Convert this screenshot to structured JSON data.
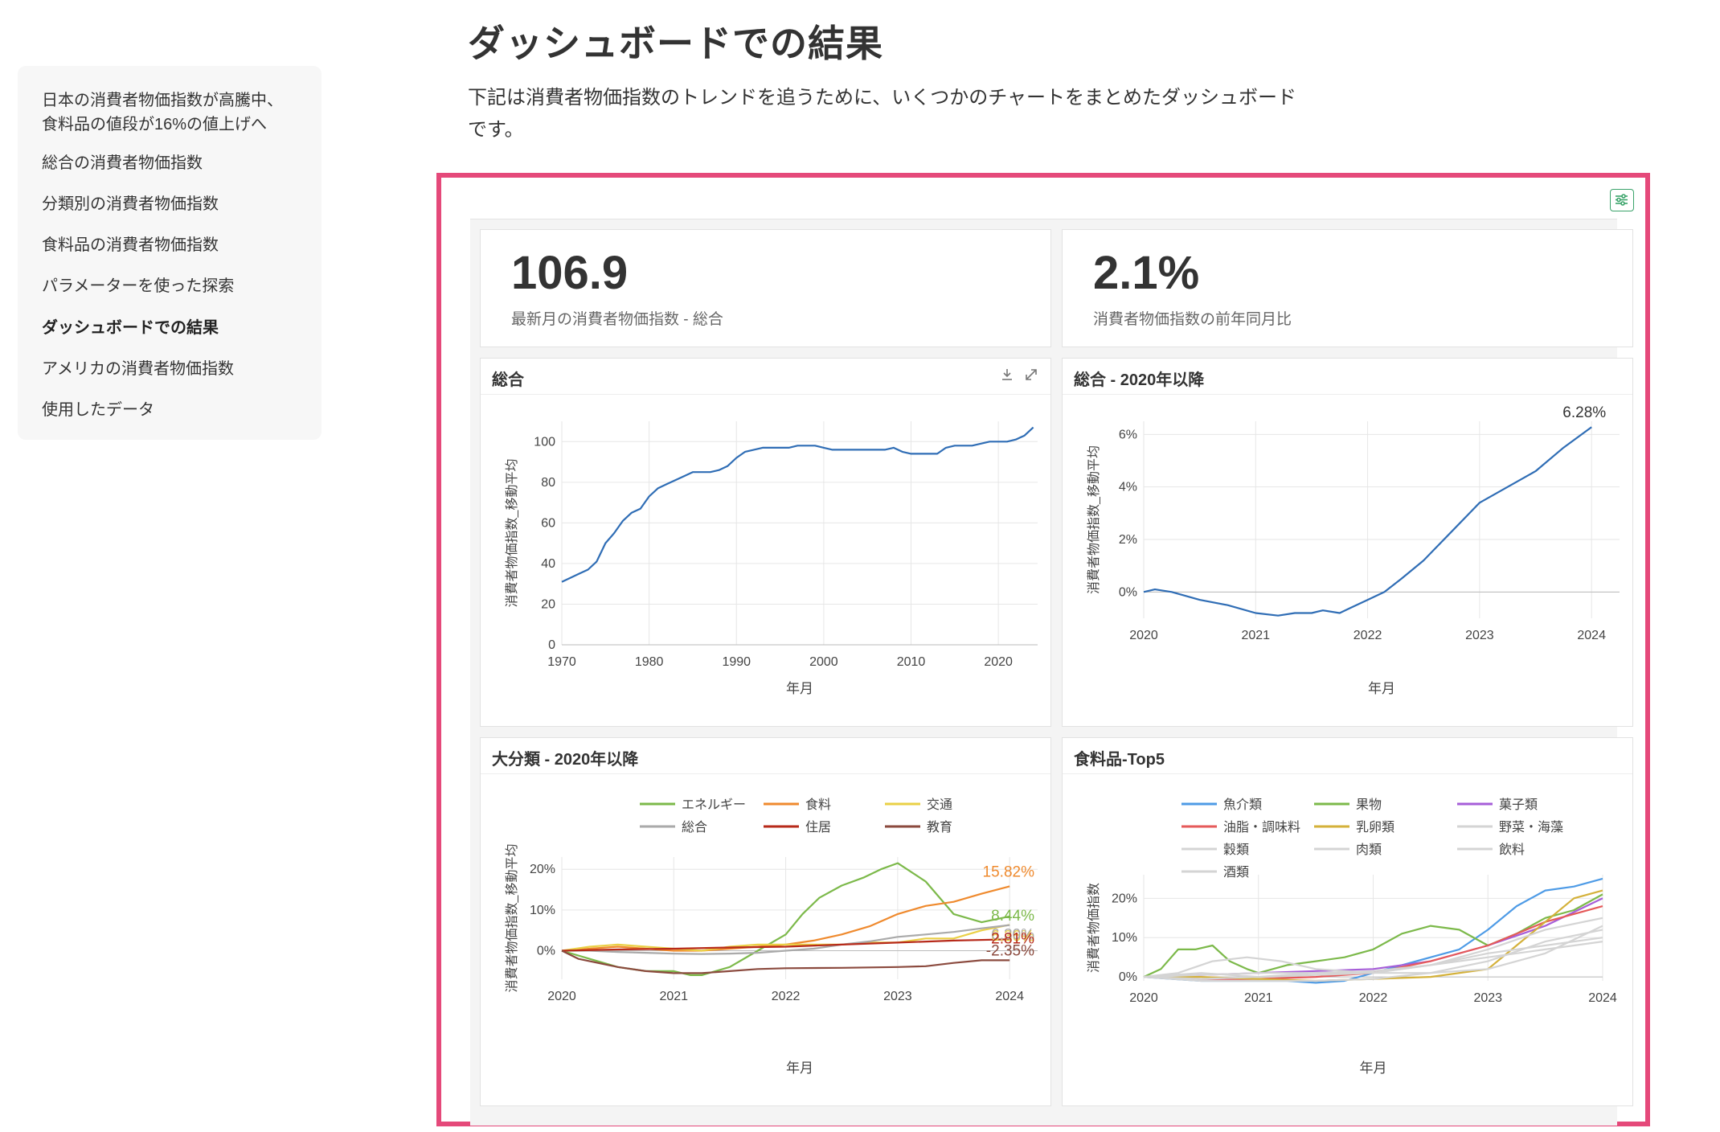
{
  "sidebar": {
    "items": [
      {
        "label_line1": "日本の消費者物価指数が高騰中、",
        "label_line2": "食料品の値段が16%の値上げへ"
      },
      {
        "label": "総合の消費者物価指数"
      },
      {
        "label": "分類別の消費者物価指数"
      },
      {
        "label": "食料品の消費者物価指数"
      },
      {
        "label": "パラメーターを使った探索"
      },
      {
        "label": "ダッシュボードでの結果"
      },
      {
        "label": "アメリカの消費者物価指数"
      },
      {
        "label": "使用したデータ"
      }
    ]
  },
  "header": {
    "title": "ダッシュボードでの結果",
    "description": "下記は消費者物価指数のトレンドを追うために、いくつかのチャートをまとめたダッシュボードです。"
  },
  "kpis": [
    {
      "value": "106.9",
      "caption": "最新月の消費者物価指数 - 総合"
    },
    {
      "value": "2.1%",
      "caption": "消費者物価指数の前年同月比"
    }
  ],
  "colors": {
    "accent": "#e5497a",
    "filter": "#3aa36a",
    "line_blue": "#2f6db5"
  },
  "icons": {
    "filter": "sliders-icon",
    "download": "download-icon",
    "expand": "expand-icon"
  },
  "chart_data": [
    {
      "type": "line",
      "title": "総合",
      "xlabel": "年月",
      "ylabel": "消費者物価指数_移動平均",
      "xlim": [
        1970,
        2024.5
      ],
      "ylim": [
        0,
        110
      ],
      "xticks": [
        1970,
        1980,
        1990,
        2000,
        2010,
        2020
      ],
      "yticks": [
        0,
        20,
        40,
        60,
        80,
        100
      ],
      "grid": "vertical",
      "series": [
        {
          "color": "#2f6db5",
          "x": [
            1970,
            1971,
            1972,
            1973,
            1974,
            1975,
            1976,
            1977,
            1978,
            1979,
            1980,
            1981,
            1982,
            1983,
            1984,
            1985,
            1986,
            1987,
            1988,
            1989,
            1990,
            1991,
            1992,
            1993,
            1994,
            1995,
            1996,
            1997,
            1998,
            1999,
            2000,
            2001,
            2002,
            2003,
            2004,
            2005,
            2006,
            2007,
            2008,
            2009,
            2010,
            2011,
            2012,
            2013,
            2014,
            2015,
            2016,
            2017,
            2018,
            2019,
            2020,
            2021,
            2022,
            2023,
            2024
          ],
          "y": [
            31,
            33,
            35,
            37,
            41,
            50,
            55,
            61,
            65,
            67,
            73,
            77,
            79,
            81,
            83,
            85,
            85,
            85,
            86,
            88,
            92,
            95,
            96,
            97,
            97,
            97,
            97,
            98,
            98,
            98,
            97,
            96,
            96,
            96,
            96,
            96,
            96,
            96,
            97,
            95,
            94,
            94,
            94,
            94,
            97,
            98,
            98,
            98,
            99,
            100,
            100,
            100,
            101,
            103,
            107
          ]
        }
      ]
    },
    {
      "type": "line",
      "title": "総合 - 2020年以降",
      "xlabel": "年月",
      "ylabel": "消費者物価指数_移動平均",
      "xlim": [
        2020,
        2024.25
      ],
      "ylim": [
        -1,
        6.5
      ],
      "xticks": [
        2020,
        2021,
        2022,
        2023,
        2024
      ],
      "yticks": [
        0,
        2,
        4,
        6
      ],
      "ytick_labels": [
        "0%",
        "2%",
        "4%",
        "6%"
      ],
      "annotation": "6.28%",
      "series": [
        {
          "color": "#2f6db5",
          "x": [
            2020,
            2020.1,
            2020.25,
            2020.5,
            2020.75,
            2021,
            2021.2,
            2021.35,
            2021.5,
            2021.6,
            2021.75,
            2021.85,
            2022,
            2022.15,
            2022.3,
            2022.5,
            2022.75,
            2023,
            2023.25,
            2023.5,
            2023.75,
            2024
          ],
          "y": [
            0.0,
            0.1,
            0.0,
            -0.3,
            -0.5,
            -0.8,
            -0.9,
            -0.8,
            -0.8,
            -0.7,
            -0.8,
            -0.6,
            -0.3,
            0.0,
            0.5,
            1.2,
            2.3,
            3.4,
            4.0,
            4.6,
            5.5,
            6.28
          ]
        }
      ]
    },
    {
      "type": "line",
      "title": "大分類 - 2020年以降",
      "xlabel": "年月",
      "ylabel": "消費者物価指数_移動平均",
      "xlim": [
        2020,
        2024.25
      ],
      "ylim": [
        -7,
        23
      ],
      "xticks": [
        2020,
        2021,
        2022,
        2023,
        2024
      ],
      "yticks": [
        0,
        10,
        20
      ],
      "ytick_labels": [
        "0%",
        "10%",
        "20%"
      ],
      "legend": "top",
      "series": [
        {
          "name": "エネルギー",
          "color": "#7cb94a",
          "end_label": "8.44%",
          "x": [
            2020,
            2020.25,
            2020.5,
            2020.75,
            2021,
            2021.15,
            2021.25,
            2021.5,
            2021.75,
            2022,
            2022.15,
            2022.3,
            2022.5,
            2022.7,
            2022.85,
            2023,
            2023.25,
            2023.5,
            2023.75,
            2024
          ],
          "y": [
            0,
            -2,
            -4,
            -5,
            -5,
            -6,
            -6,
            -4,
            0,
            4,
            9,
            13,
            16,
            18,
            20,
            21.5,
            17,
            9,
            7,
            8.44
          ]
        },
        {
          "name": "食料",
          "color": "#ef8a2e",
          "end_label": "15.82%",
          "x": [
            2020,
            2020.25,
            2020.5,
            2020.75,
            2021,
            2021.25,
            2021.5,
            2021.75,
            2022,
            2022.25,
            2022.5,
            2022.75,
            2023,
            2023.25,
            2023.5,
            2023.75,
            2024
          ],
          "y": [
            0,
            0.5,
            1,
            0.5,
            0,
            0,
            0.5,
            1,
            1.5,
            2.5,
            4,
            6,
            9,
            11,
            12,
            14,
            15.82
          ]
        },
        {
          "name": "交通",
          "color": "#ead046",
          "end_label": "6.36%",
          "x": [
            2020,
            2020.25,
            2020.5,
            2020.75,
            2021,
            2021.25,
            2021.5,
            2021.75,
            2022,
            2022.25,
            2022.5,
            2022.75,
            2023,
            2023.25,
            2023.5,
            2023.75,
            2024
          ],
          "y": [
            0,
            1,
            1.5,
            1,
            0.5,
            0,
            1,
            1.5,
            1.5,
            1.5,
            1.5,
            2,
            2,
            3,
            3,
            5,
            6.36
          ]
        },
        {
          "name": "総合",
          "color": "#aaaaaa",
          "end_label": "6.30%",
          "x": [
            2020,
            2020.25,
            2020.5,
            2020.75,
            2021,
            2021.25,
            2021.5,
            2021.75,
            2022,
            2022.25,
            2022.5,
            2022.75,
            2023,
            2023.25,
            2023.5,
            2023.75,
            2024
          ],
          "y": [
            0,
            0,
            -0.3,
            -0.5,
            -0.7,
            -0.8,
            -0.7,
            -0.5,
            0,
            0.5,
            1.5,
            2.3,
            3.4,
            4.0,
            4.6,
            5.5,
            6.3
          ]
        },
        {
          "name": "住居",
          "color": "#b72a1a",
          "end_label": "2.81%",
          "x": [
            2020,
            2020.5,
            2021,
            2021.5,
            2022,
            2022.5,
            2023,
            2023.5,
            2024
          ],
          "y": [
            0,
            0.3,
            0.5,
            0.8,
            1,
            1.5,
            2,
            2.5,
            2.81
          ]
        },
        {
          "name": "教育",
          "color": "#8b4a3e",
          "end_label": "-2.35%",
          "x": [
            2020,
            2020.15,
            2020.5,
            2020.75,
            2021,
            2021.25,
            2021.5,
            2021.75,
            2022,
            2022.5,
            2023,
            2023.25,
            2023.5,
            2023.75,
            2024
          ],
          "y": [
            0,
            -2,
            -4,
            -5,
            -5.5,
            -5.5,
            -5,
            -4.5,
            -4.3,
            -4.2,
            -4,
            -3.8,
            -3,
            -2.35,
            -2.35
          ]
        }
      ]
    },
    {
      "type": "line",
      "title": "食料品-Top5",
      "xlabel": "年月",
      "ylabel": "消費者物価指数",
      "xlim": [
        2020,
        2024
      ],
      "ylim": [
        -1,
        26
      ],
      "xticks": [
        2020,
        2021,
        2022,
        2023,
        2024
      ],
      "yticks": [
        0,
        10,
        20
      ],
      "ytick_labels": [
        "0%",
        "10%",
        "20%"
      ],
      "legend": "top",
      "series": [
        {
          "name": "魚介類",
          "color": "#4e9be6",
          "x": [
            2020,
            2020.25,
            2020.5,
            2020.75,
            2021,
            2021.25,
            2021.5,
            2021.75,
            2022,
            2022.25,
            2022.5,
            2022.75,
            2023,
            2023.25,
            2023.5,
            2023.75,
            2024
          ],
          "y": [
            0,
            -0.5,
            -1,
            -1,
            -1,
            -1,
            -1.5,
            -1,
            1,
            3,
            5,
            7,
            12,
            18,
            22,
            23,
            25
          ]
        },
        {
          "name": "果物",
          "color": "#7cb94a",
          "x": [
            2020,
            2020.15,
            2020.3,
            2020.45,
            2020.6,
            2020.75,
            2020.9,
            2021,
            2021.25,
            2021.5,
            2021.75,
            2022,
            2022.25,
            2022.5,
            2022.75,
            2023,
            2023.25,
            2023.5,
            2023.75,
            2024
          ],
          "y": [
            0,
            2,
            7,
            7,
            8,
            4,
            2,
            1,
            3,
            4,
            5,
            7,
            11,
            13,
            12,
            8,
            11,
            15,
            17,
            21
          ]
        },
        {
          "name": "菓子類",
          "color": "#a65ed8",
          "x": [
            2020,
            2020.5,
            2021,
            2021.5,
            2022,
            2022.5,
            2023,
            2023.5,
            2024
          ],
          "y": [
            0,
            0.5,
            1,
            1.5,
            2,
            4,
            8,
            13,
            20
          ]
        },
        {
          "name": "油脂・調味料",
          "color": "#e55a5a",
          "x": [
            2020,
            2020.5,
            2021,
            2021.5,
            2022,
            2022.5,
            2023,
            2023.5,
            2024
          ],
          "y": [
            0,
            -0.5,
            -0.5,
            0,
            1,
            4,
            8,
            14,
            18
          ]
        },
        {
          "name": "乳卵類",
          "color": "#d4b13a",
          "x": [
            2020,
            2020.5,
            2021,
            2021.5,
            2022,
            2022.5,
            2023,
            2023.25,
            2023.5,
            2023.75,
            2024
          ],
          "y": [
            0,
            0,
            -0.5,
            -1,
            -0.5,
            0,
            2,
            8,
            14,
            20,
            22
          ]
        },
        {
          "name": "野菜・海藻",
          "color": "#d4d4d4",
          "x": [
            2020,
            2020.5,
            2021,
            2021.5,
            2022,
            2022.5,
            2023,
            2023.5,
            2024
          ],
          "y": [
            0,
            -0.5,
            0,
            0.5,
            1,
            3,
            7,
            12,
            15
          ]
        },
        {
          "name": "穀類",
          "color": "#d4d4d4",
          "x": [
            2020,
            2020.5,
            2021,
            2021.5,
            2022,
            2022.5,
            2023,
            2023.5,
            2024
          ],
          "y": [
            0,
            -1,
            -1,
            -1,
            -0.5,
            1,
            4,
            9,
            12
          ]
        },
        {
          "name": "肉類",
          "color": "#d4d4d4",
          "x": [
            2020,
            2020.5,
            2021,
            2021.5,
            2022,
            2022.5,
            2023,
            2023.5,
            2024
          ],
          "y": [
            0,
            1,
            0,
            1,
            1,
            3,
            6,
            8,
            10
          ]
        },
        {
          "name": "飲料",
          "color": "#d4d4d4",
          "x": [
            2020,
            2020.5,
            2021,
            2021.5,
            2022,
            2022.5,
            2023,
            2023.5,
            2024
          ],
          "y": [
            0,
            0.5,
            1,
            1,
            1.5,
            3,
            5,
            7,
            9
          ]
        },
        {
          "name": "酒類",
          "color": "#d4d4d4",
          "x": [
            2020,
            2020.3,
            2020.6,
            2020.9,
            2021.2,
            2021.5,
            2022,
            2022.5,
            2023,
            2023.5,
            2024
          ],
          "y": [
            0,
            1,
            4,
            5,
            4,
            2,
            1,
            1,
            2,
            6,
            13
          ]
        }
      ]
    }
  ]
}
